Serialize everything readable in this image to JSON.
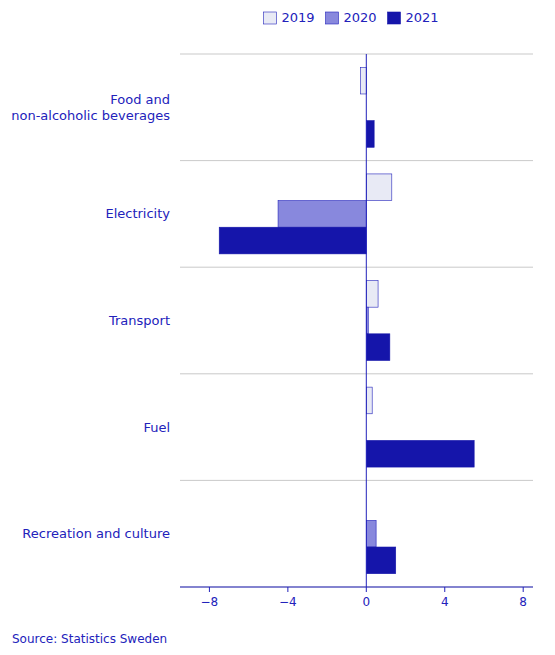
{
  "chart_data": {
    "type": "bar",
    "orientation": "horizontal",
    "categories": [
      "Food and\nnon-alcoholic beverages",
      "Electricity",
      "Transport",
      "Fuel",
      "Recreation and culture"
    ],
    "series": [
      {
        "name": "2019",
        "color": "#e8eaf5",
        "values": [
          -0.3,
          1.3,
          0.6,
          0.3,
          0.0
        ]
      },
      {
        "name": "2020",
        "color": "#8888dd",
        "values": [
          0.0,
          -4.5,
          0.1,
          0.0,
          0.5
        ]
      },
      {
        "name": "2021",
        "color": "#1515aa",
        "values": [
          0.4,
          -7.5,
          1.2,
          5.5,
          1.5
        ]
      }
    ],
    "xlim": [
      -9.5,
      8.5
    ],
    "xticks": [
      {
        "value": -8,
        "label": "−8"
      },
      {
        "value": -4,
        "label": "−4"
      },
      0,
      4,
      8
    ],
    "grid": true,
    "legend": "top",
    "annotations": [
      "Source: Statistics Sweden"
    ]
  }
}
